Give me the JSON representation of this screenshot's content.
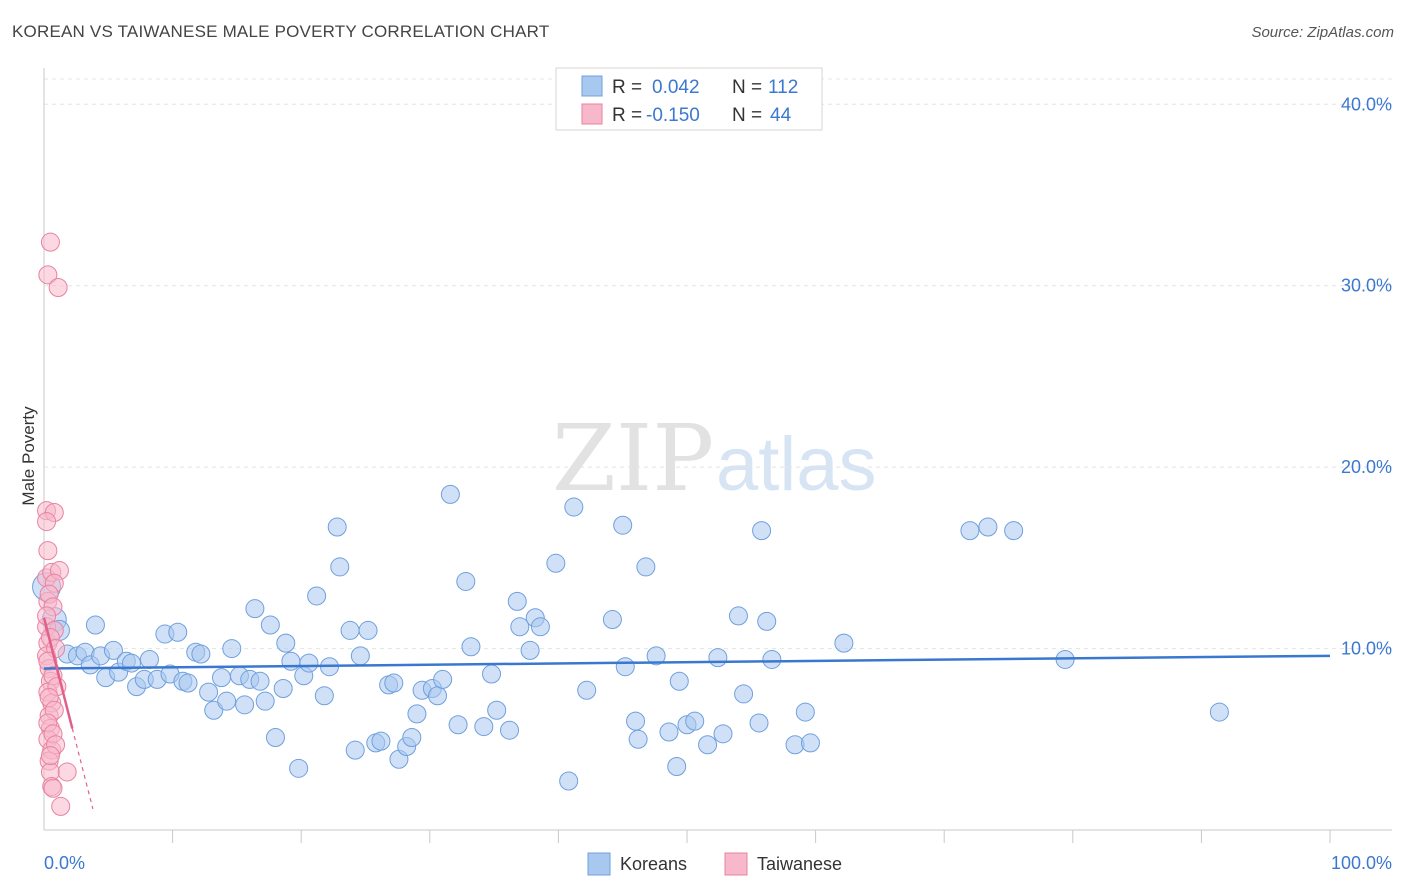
{
  "chart_data": {
    "type": "scatter",
    "title": "KOREAN VS TAIWANESE MALE POVERTY CORRELATION CHART",
    "source": "Source: ZipAtlas.com",
    "xlabel": "",
    "ylabel": "Male Poverty",
    "xlim": [
      0,
      100
    ],
    "ylim": [
      0,
      42
    ],
    "x_tick_labels": {
      "left": "0.0%",
      "right": "100.0%"
    },
    "y_ticks": [
      {
        "value": 10,
        "label": "10.0%"
      },
      {
        "value": 20,
        "label": "20.0%"
      },
      {
        "value": 30,
        "label": "30.0%"
      },
      {
        "value": 40,
        "label": "40.0%"
      }
    ],
    "watermark": {
      "part1": "ZIP",
      "part2": "atlas"
    },
    "legend": [
      {
        "name": "Koreans",
        "r_label": "R =",
        "r_value": "0.042",
        "n_label": "N =",
        "n_value": "112",
        "color": "#a9c8f0",
        "stroke": "#6fa0dd"
      },
      {
        "name": "Taiwanese",
        "r_label": "R =",
        "r_value": "-0.150",
        "n_label": "N =",
        "n_value": "44",
        "color": "#f7b8cb",
        "stroke": "#e882a3"
      }
    ],
    "series": [
      {
        "name": "Koreans",
        "color": "#a9c8f0",
        "stroke": "#6fa0dd",
        "trend": {
          "x1": 0,
          "y1": 8.9,
          "x2": 100,
          "y2": 9.6,
          "color": "#3a78d0"
        },
        "points": [
          [
            0.2,
            13.4
          ],
          [
            0.8,
            11.6
          ],
          [
            1.2,
            11.0
          ],
          [
            1.8,
            9.7
          ],
          [
            2.6,
            9.6
          ],
          [
            3.2,
            9.8
          ],
          [
            3.6,
            9.1
          ],
          [
            4.0,
            11.3
          ],
          [
            4.4,
            9.6
          ],
          [
            4.8,
            8.4
          ],
          [
            5.4,
            9.9
          ],
          [
            5.8,
            8.7
          ],
          [
            6.4,
            9.3
          ],
          [
            6.8,
            9.2
          ],
          [
            7.2,
            7.9
          ],
          [
            7.8,
            8.3
          ],
          [
            8.2,
            9.4
          ],
          [
            8.8,
            8.3
          ],
          [
            9.4,
            10.8
          ],
          [
            9.8,
            8.6
          ],
          [
            10.4,
            10.9
          ],
          [
            10.8,
            8.2
          ],
          [
            11.2,
            8.1
          ],
          [
            11.8,
            9.8
          ],
          [
            12.2,
            9.7
          ],
          [
            12.8,
            7.6
          ],
          [
            13.2,
            6.6
          ],
          [
            13.8,
            8.4
          ],
          [
            14.2,
            7.1
          ],
          [
            14.6,
            10.0
          ],
          [
            15.2,
            8.5
          ],
          [
            15.6,
            6.9
          ],
          [
            16.0,
            8.3
          ],
          [
            16.4,
            12.2
          ],
          [
            16.8,
            8.2
          ],
          [
            17.2,
            7.1
          ],
          [
            17.6,
            11.3
          ],
          [
            18.0,
            5.1
          ],
          [
            18.6,
            7.8
          ],
          [
            18.8,
            10.3
          ],
          [
            19.2,
            9.3
          ],
          [
            19.8,
            3.4
          ],
          [
            20.2,
            8.5
          ],
          [
            20.6,
            9.2
          ],
          [
            21.2,
            12.9
          ],
          [
            21.8,
            7.4
          ],
          [
            22.2,
            9.0
          ],
          [
            22.8,
            16.7
          ],
          [
            23.0,
            14.5
          ],
          [
            23.8,
            11.0
          ],
          [
            24.2,
            4.4
          ],
          [
            24.6,
            9.6
          ],
          [
            25.2,
            11.0
          ],
          [
            25.8,
            4.8
          ],
          [
            26.2,
            4.9
          ],
          [
            26.8,
            8.0
          ],
          [
            27.2,
            8.1
          ],
          [
            27.6,
            3.9
          ],
          [
            28.2,
            4.6
          ],
          [
            28.6,
            5.1
          ],
          [
            29.0,
            6.4
          ],
          [
            29.4,
            7.7
          ],
          [
            30.2,
            7.8
          ],
          [
            30.6,
            7.4
          ],
          [
            31.0,
            8.3
          ],
          [
            31.6,
            18.5
          ],
          [
            32.2,
            5.8
          ],
          [
            32.8,
            13.7
          ],
          [
            33.2,
            10.1
          ],
          [
            34.2,
            5.7
          ],
          [
            34.8,
            8.6
          ],
          [
            35.2,
            6.6
          ],
          [
            36.2,
            5.5
          ],
          [
            36.8,
            12.6
          ],
          [
            37.0,
            11.2
          ],
          [
            37.8,
            9.9
          ],
          [
            38.2,
            11.7
          ],
          [
            38.6,
            11.2
          ],
          [
            39.8,
            14.7
          ],
          [
            40.8,
            2.7
          ],
          [
            41.2,
            17.8
          ],
          [
            42.2,
            7.7
          ],
          [
            44.2,
            11.6
          ],
          [
            45.0,
            16.8
          ],
          [
            45.2,
            9.0
          ],
          [
            46.0,
            6.0
          ],
          [
            46.2,
            5.0
          ],
          [
            46.8,
            14.5
          ],
          [
            47.6,
            9.6
          ],
          [
            48.6,
            5.4
          ],
          [
            49.2,
            3.5
          ],
          [
            49.4,
            8.2
          ],
          [
            50.0,
            5.8
          ],
          [
            50.6,
            6.0
          ],
          [
            51.6,
            4.7
          ],
          [
            52.4,
            9.5
          ],
          [
            52.8,
            5.3
          ],
          [
            54.0,
            11.8
          ],
          [
            54.4,
            7.5
          ],
          [
            55.6,
            5.9
          ],
          [
            55.8,
            16.5
          ],
          [
            56.2,
            11.5
          ],
          [
            56.6,
            9.4
          ],
          [
            58.4,
            4.7
          ],
          [
            59.2,
            6.5
          ],
          [
            59.6,
            4.8
          ],
          [
            62.2,
            10.3
          ],
          [
            72.0,
            16.5
          ],
          [
            73.4,
            16.7
          ],
          [
            75.4,
            16.5
          ],
          [
            79.4,
            9.4
          ],
          [
            91.4,
            6.5
          ]
        ]
      },
      {
        "name": "Taiwanese",
        "color": "#f7b8cb",
        "stroke": "#e882a3",
        "trend": {
          "x1": 0,
          "y1": 11.7,
          "x2": 2.2,
          "y2": 5.6,
          "dash_to_x": 3.8,
          "color": "#e0608a"
        },
        "points": [
          [
            0.2,
            13.9
          ],
          [
            0.3,
            12.6
          ],
          [
            0.2,
            11.2
          ],
          [
            0.3,
            10.3
          ],
          [
            0.2,
            9.6
          ],
          [
            0.4,
            8.9
          ],
          [
            0.5,
            8.2
          ],
          [
            0.3,
            7.6
          ],
          [
            0.6,
            7.0
          ],
          [
            0.4,
            6.3
          ],
          [
            0.5,
            5.6
          ],
          [
            0.3,
            5.0
          ],
          [
            0.6,
            4.4
          ],
          [
            0.4,
            3.8
          ],
          [
            0.5,
            3.2
          ],
          [
            0.6,
            2.4
          ],
          [
            0.5,
            32.4
          ],
          [
            0.3,
            30.6
          ],
          [
            1.1,
            29.9
          ],
          [
            0.2,
            17.6
          ],
          [
            0.8,
            17.5
          ],
          [
            0.2,
            17.0
          ],
          [
            0.3,
            15.4
          ],
          [
            0.6,
            14.2
          ],
          [
            1.2,
            14.3
          ],
          [
            0.8,
            13.6
          ],
          [
            0.4,
            13.0
          ],
          [
            0.7,
            12.3
          ],
          [
            0.2,
            11.8
          ],
          [
            0.8,
            11.0
          ],
          [
            0.5,
            10.6
          ],
          [
            0.9,
            10.0
          ],
          [
            0.3,
            9.3
          ],
          [
            0.7,
            8.5
          ],
          [
            1.0,
            7.9
          ],
          [
            0.4,
            7.3
          ],
          [
            0.8,
            6.6
          ],
          [
            0.3,
            5.9
          ],
          [
            0.7,
            5.3
          ],
          [
            0.9,
            4.7
          ],
          [
            0.5,
            4.1
          ],
          [
            1.8,
            3.2
          ],
          [
            0.7,
            2.3
          ],
          [
            1.3,
            1.3
          ]
        ]
      }
    ]
  }
}
